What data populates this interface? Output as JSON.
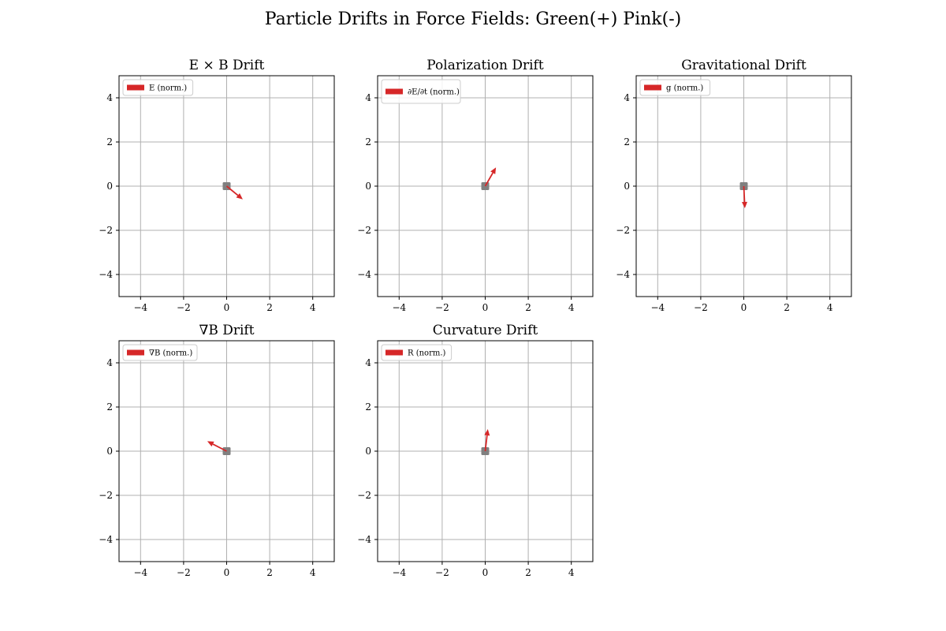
{
  "figure": {
    "suptitle": "Particle Drifts in Force Fields: Green(+) Pink(-)"
  },
  "colors": {
    "arrow": "#d62728",
    "marker": "#808080",
    "grid": "#b0b0b0",
    "axes": "#000000",
    "legend_border": "#cccccc"
  },
  "chart_data": [
    {
      "type": "scatter",
      "title": "E × B Drift",
      "xlim": [
        -5,
        5
      ],
      "ylim": [
        -5,
        5
      ],
      "xticks": [
        -4,
        -2,
        0,
        2,
        4
      ],
      "yticks": [
        -4,
        -2,
        0,
        2,
        4
      ],
      "grid": true,
      "legend": {
        "label": "E (norm.)",
        "placement": "top-left"
      },
      "points": [
        {
          "x": 0,
          "y": 0
        }
      ],
      "arrow": {
        "x": 0,
        "y": 0,
        "dx": 0.75,
        "dy": -0.6
      }
    },
    {
      "type": "scatter",
      "title": "Polarization Drift",
      "xlim": [
        -5,
        5
      ],
      "ylim": [
        -5,
        5
      ],
      "xticks": [
        -4,
        -2,
        0,
        2,
        4
      ],
      "yticks": [
        -4,
        -2,
        0,
        2,
        4
      ],
      "grid": true,
      "legend": {
        "label": "∂E/∂t (norm.)",
        "placement": "top-left"
      },
      "points": [
        {
          "x": 0,
          "y": 0
        }
      ],
      "arrow": {
        "x": 0,
        "y": 0,
        "dx": 0.5,
        "dy": 0.85
      }
    },
    {
      "type": "scatter",
      "title": "Gravitational Drift",
      "xlim": [
        -5,
        5
      ],
      "ylim": [
        -5,
        5
      ],
      "xticks": [
        -4,
        -2,
        0,
        2,
        4
      ],
      "yticks": [
        -4,
        -2,
        0,
        2,
        4
      ],
      "grid": true,
      "legend": {
        "label": "g (norm.)",
        "placement": "top-left"
      },
      "points": [
        {
          "x": 0,
          "y": 0
        }
      ],
      "arrow": {
        "x": 0,
        "y": 0,
        "dx": 0.05,
        "dy": -1.0
      }
    },
    {
      "type": "scatter",
      "title": "∇B Drift",
      "xlim": [
        -5,
        5
      ],
      "ylim": [
        -5,
        5
      ],
      "xticks": [
        -4,
        -2,
        0,
        2,
        4
      ],
      "yticks": [
        -4,
        -2,
        0,
        2,
        4
      ],
      "grid": true,
      "legend": {
        "label": "∇B (norm.)",
        "placement": "top-left"
      },
      "points": [
        {
          "x": 0,
          "y": 0
        }
      ],
      "arrow": {
        "x": 0,
        "y": 0,
        "dx": -0.9,
        "dy": 0.45
      }
    },
    {
      "type": "scatter",
      "title": "Curvature Drift",
      "xlim": [
        -5,
        5
      ],
      "ylim": [
        -5,
        5
      ],
      "xticks": [
        -4,
        -2,
        0,
        2,
        4
      ],
      "yticks": [
        -4,
        -2,
        0,
        2,
        4
      ],
      "grid": true,
      "legend": {
        "label": "R (norm.)",
        "placement": "top-left"
      },
      "points": [
        {
          "x": 0,
          "y": 0
        }
      ],
      "arrow": {
        "x": 0,
        "y": 0,
        "dx": 0.12,
        "dy": 1.0
      }
    }
  ]
}
